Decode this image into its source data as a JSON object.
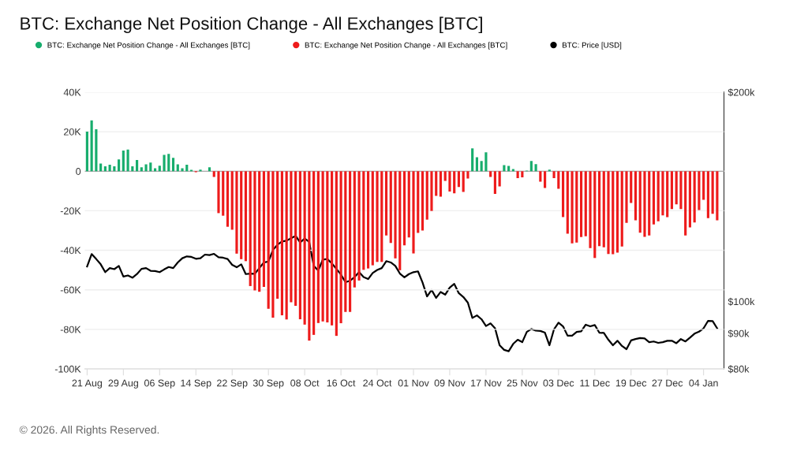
{
  "chart_data": {
    "type": "bar",
    "title": "BTC: Exchange Net Position Change - All Exchanges [BTC]",
    "annotations": [
      "© 2026. All Rights Reserved."
    ],
    "x": [
      "2025-08-21",
      "2025-08-22",
      "2025-08-23",
      "2025-08-24",
      "2025-08-25",
      "2025-08-26",
      "2025-08-27",
      "2025-08-28",
      "2025-08-29",
      "2025-08-30",
      "2025-08-31",
      "2025-09-01",
      "2025-09-02",
      "2025-09-03",
      "2025-09-04",
      "2025-09-05",
      "2025-09-06",
      "2025-09-07",
      "2025-09-08",
      "2025-09-09",
      "2025-09-10",
      "2025-09-11",
      "2025-09-12",
      "2025-09-13",
      "2025-09-14",
      "2025-09-15",
      "2025-09-16",
      "2025-09-17",
      "2025-09-18",
      "2025-09-19",
      "2025-09-20",
      "2025-09-21",
      "2025-09-22",
      "2025-09-23",
      "2025-09-24",
      "2025-09-25",
      "2025-09-26",
      "2025-09-27",
      "2025-09-28",
      "2025-09-29",
      "2025-09-30",
      "2025-10-01",
      "2025-10-02",
      "2025-10-03",
      "2025-10-04",
      "2025-10-05",
      "2025-10-06",
      "2025-10-07",
      "2025-10-08",
      "2025-10-09",
      "2025-10-10",
      "2025-10-11",
      "2025-10-12",
      "2025-10-13",
      "2025-10-14",
      "2025-10-15",
      "2025-10-16",
      "2025-10-17",
      "2025-10-18",
      "2025-10-19",
      "2025-10-20",
      "2025-10-21",
      "2025-10-22",
      "2025-10-23",
      "2025-10-24",
      "2025-10-25",
      "2025-10-26",
      "2025-10-27",
      "2025-10-28",
      "2025-10-29",
      "2025-10-30",
      "2025-10-31",
      "2025-11-01",
      "2025-11-02",
      "2025-11-03",
      "2025-11-04",
      "2025-11-05",
      "2025-11-06",
      "2025-11-07",
      "2025-11-08",
      "2025-11-09",
      "2025-11-10",
      "2025-11-11",
      "2025-11-12",
      "2025-11-13",
      "2025-11-14",
      "2025-11-15",
      "2025-11-16",
      "2025-11-17",
      "2025-11-18",
      "2025-11-19",
      "2025-11-20",
      "2025-11-21",
      "2025-11-22",
      "2025-11-23",
      "2025-11-24",
      "2025-11-25",
      "2025-11-26",
      "2025-11-27",
      "2025-11-28",
      "2025-11-29",
      "2025-11-30",
      "2025-12-01",
      "2025-12-02",
      "2025-12-03",
      "2025-12-04",
      "2025-12-05",
      "2025-12-06",
      "2025-12-07",
      "2025-12-08",
      "2025-12-09",
      "2025-12-10",
      "2025-12-11",
      "2025-12-12",
      "2025-12-13",
      "2025-12-14",
      "2025-12-15",
      "2025-12-16",
      "2025-12-17",
      "2025-12-18",
      "2025-12-19",
      "2025-12-20",
      "2025-12-21",
      "2025-12-22",
      "2025-12-23",
      "2025-12-24",
      "2025-12-25",
      "2025-12-26",
      "2025-12-27",
      "2025-12-28",
      "2025-12-29",
      "2025-12-30",
      "2025-12-31",
      "2026-01-01",
      "2026-01-02",
      "2026-01-03",
      "2026-01-04",
      "2026-01-05",
      "2026-01-06",
      "2026-01-07"
    ],
    "series": [
      {
        "name": "BTC: Exchange Net Position Change - All Exchanges [BTC]",
        "color": "#17ad6d",
        "values": [
          20000,
          25700,
          21200,
          3900,
          2500,
          3300,
          2500,
          6000,
          10500,
          11000,
          2500,
          5700,
          2000,
          3500,
          4400,
          1500,
          2800,
          8300,
          8800,
          6800,
          3500,
          1500,
          3300,
          700,
          null,
          800,
          null,
          2000,
          null,
          null,
          null,
          null,
          null,
          null,
          null,
          null,
          null,
          null,
          null,
          null,
          null,
          null,
          null,
          null,
          null,
          null,
          null,
          null,
          null,
          null,
          null,
          null,
          null,
          null,
          null,
          null,
          null,
          null,
          null,
          null,
          null,
          null,
          null,
          null,
          null,
          null,
          null,
          null,
          null,
          null,
          null,
          null,
          null,
          null,
          null,
          null,
          null,
          null,
          null,
          null,
          null,
          null,
          null,
          null,
          null,
          11600,
          7100,
          5200,
          9600,
          null,
          null,
          null,
          3100,
          2700,
          1100,
          null,
          null,
          300,
          5200,
          3600,
          null,
          null,
          800,
          null,
          null,
          null,
          null,
          null,
          null,
          null,
          null,
          null,
          null,
          null,
          null,
          null,
          null,
          null,
          null,
          null,
          null,
          null,
          null,
          null,
          null,
          null,
          null,
          null,
          null,
          null,
          null,
          null,
          null,
          null,
          null,
          null,
          null,
          null,
          null,
          null
        ]
      },
      {
        "name": "BTC: Exchange Net Position Change - All Exchanges [BTC]",
        "color": "#ee1b1b",
        "values": [
          null,
          null,
          null,
          null,
          null,
          null,
          null,
          null,
          null,
          null,
          null,
          null,
          null,
          null,
          null,
          null,
          null,
          null,
          null,
          null,
          null,
          null,
          null,
          null,
          -500,
          null,
          null,
          null,
          -2900,
          -21200,
          -22500,
          -28100,
          -29600,
          -41700,
          -44500,
          -45500,
          -58100,
          -60300,
          -61000,
          -58500,
          -69600,
          -74100,
          -64500,
          -72900,
          -75000,
          -66300,
          -68100,
          -74900,
          -77600,
          -85700,
          -82800,
          -76800,
          -76000,
          -76500,
          -78000,
          -83300,
          -76900,
          -71200,
          -71200,
          -58800,
          -55300,
          -49900,
          -49200,
          -47600,
          -45900,
          -45900,
          -32500,
          -36300,
          -44100,
          -50100,
          -37500,
          -33500,
          -41600,
          -31200,
          -30000,
          -24500,
          -20100,
          -12500,
          -12900,
          -4900,
          -10300,
          -11200,
          -8000,
          -10500,
          -3700,
          null,
          null,
          null,
          null,
          -2900,
          -11500,
          -7700,
          null,
          null,
          null,
          -3500,
          -3100,
          null,
          null,
          null,
          -5300,
          -8500,
          null,
          -3500,
          -8900,
          -23200,
          -31600,
          -36500,
          -36100,
          -33300,
          -32900,
          -38900,
          -43900,
          -37900,
          -38500,
          -41900,
          -42000,
          -41200,
          -38100,
          -26100,
          -16100,
          -24800,
          -31100,
          -33200,
          -32500,
          -26900,
          -25300,
          -22300,
          -23200,
          -19100,
          -16800,
          -19100,
          -32500,
          -28400,
          -25900,
          -19600,
          -14500,
          -23700,
          -21500,
          -24800
        ]
      },
      {
        "name": "BTC: Price [USD]",
        "type": "line",
        "axis": "y2",
        "color": "#000000",
        "values": [
          112300,
          117000,
          115100,
          113100,
          110200,
          111700,
          111300,
          112500,
          108600,
          109000,
          108200,
          109500,
          111400,
          111700,
          110700,
          110600,
          110200,
          111200,
          112100,
          111700,
          113800,
          115400,
          116100,
          115900,
          115200,
          115400,
          116800,
          116600,
          117100,
          115800,
          115600,
          115100,
          112900,
          112000,
          113100,
          109500,
          109700,
          109600,
          111700,
          113800,
          114100,
          118600,
          120700,
          122000,
          122300,
          123300,
          124300,
          121600,
          123200,
          121800,
          112500,
          110800,
          114900,
          115100,
          113400,
          111400,
          109300,
          106600,
          107100,
          108400,
          110200,
          108400,
          107700,
          109900,
          111000,
          111700,
          114300,
          113800,
          112500,
          109700,
          108300,
          109500,
          110200,
          110500,
          106500,
          101700,
          103900,
          101200,
          103200,
          102300,
          104700,
          106000,
          102800,
          101500,
          99600,
          94700,
          95500,
          94300,
          92200,
          93000,
          91500,
          86500,
          85200,
          84800,
          86900,
          88100,
          87400,
          90400,
          91300,
          90800,
          90700,
          90200,
          86500,
          91200,
          93200,
          92100,
          89300,
          89300,
          90400,
          90600,
          92600,
          92100,
          92500,
          90200,
          90100,
          88100,
          86500,
          87800,
          86300,
          85400,
          87900,
          88300,
          88600,
          88500,
          87400,
          87600,
          87200,
          87400,
          87800,
          87800,
          87100,
          88300,
          87600,
          88700,
          89900,
          90500,
          91500,
          93800,
          93700,
          91500
        ]
      }
    ],
    "xlim": [
      "2025-08-20T12:00",
      "2026-01-08T12:00"
    ],
    "xticks": [
      {
        "value": "2025-08-21",
        "label": "21 Aug"
      },
      {
        "value": "2025-08-29",
        "label": "29 Aug"
      },
      {
        "value": "2025-09-06",
        "label": "06 Sep"
      },
      {
        "value": "2025-09-14",
        "label": "14 Sep"
      },
      {
        "value": "2025-09-22",
        "label": "22 Sep"
      },
      {
        "value": "2025-09-30",
        "label": "30 Sep"
      },
      {
        "value": "2025-10-08",
        "label": "08 Oct"
      },
      {
        "value": "2025-10-16",
        "label": "16 Oct"
      },
      {
        "value": "2025-10-24",
        "label": "24 Oct"
      },
      {
        "value": "2025-11-01",
        "label": "01 Nov"
      },
      {
        "value": "2025-11-09",
        "label": "09 Nov"
      },
      {
        "value": "2025-11-17",
        "label": "17 Nov"
      },
      {
        "value": "2025-11-25",
        "label": "25 Nov"
      },
      {
        "value": "2025-12-03",
        "label": "03 Dec"
      },
      {
        "value": "2025-12-11",
        "label": "11 Dec"
      },
      {
        "value": "2025-12-19",
        "label": "19 Dec"
      },
      {
        "value": "2025-12-27",
        "label": "27 Dec"
      },
      {
        "value": "2026-01-04",
        "label": "04 Jan"
      }
    ],
    "ylim": [
      -100000,
      40000
    ],
    "yticks": [
      {
        "value": -100000,
        "label": "-100K"
      },
      {
        "value": -80000,
        "label": "-80K"
      },
      {
        "value": -60000,
        "label": "-60K"
      },
      {
        "value": -40000,
        "label": "-40K"
      },
      {
        "value": -20000,
        "label": "-20K"
      },
      0,
      {
        "value": 20000,
        "label": "20K"
      },
      {
        "value": 40000,
        "label": "40K"
      }
    ],
    "log": "y2",
    "y2lim": [
      80000,
      200000
    ],
    "y2ticks": [
      {
        "value": 80000,
        "label": "$80k"
      },
      {
        "value": 90000,
        "label": "$90k"
      },
      {
        "value": 100000,
        "label": "$100k"
      },
      {
        "value": 200000,
        "label": "$200k"
      }
    ],
    "ref_lines": [
      {
        "axis": "y",
        "value": 0,
        "color": "#9a9a9a"
      }
    ],
    "grid": "y",
    "legend": "top"
  }
}
